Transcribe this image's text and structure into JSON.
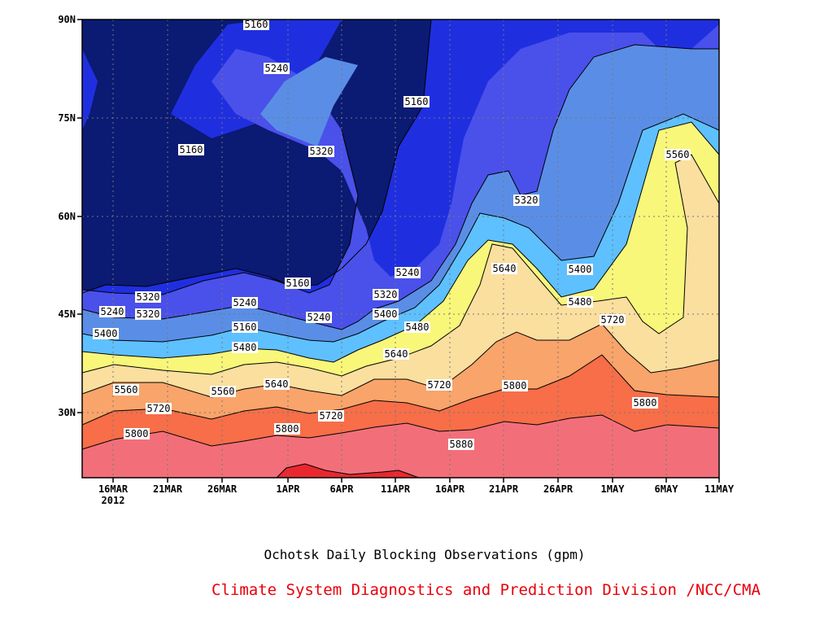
{
  "chart_data": {
    "type": "contour",
    "title": "Ochotsk Daily Blocking Observations (gpm)",
    "credit": "Climate System Diagnostics and Prediction Division /NCC/CMA",
    "colors": {
      "credit": "#e8000b",
      "levels": [
        "#0b1a73",
        "#1f2fe0",
        "#4a50ea",
        "#5a8ee6",
        "#5ec0ff",
        "#f8f77a",
        "#fbdf9f",
        "#f9a46a",
        "#f76e48",
        "#f26f7a",
        "#e8282e"
      ]
    },
    "x_ticks": [
      "16MAR",
      "21MAR",
      "26MAR",
      "1APR",
      "6APR",
      "11APR",
      "16APR",
      "21APR",
      "26APR",
      "1MAY",
      "6MAY",
      "11MAY"
    ],
    "x_year_label": "2012",
    "y_ticks": [
      "30N",
      "45N",
      "60N",
      "75N",
      "90N"
    ],
    "ylim": [
      20,
      90
    ],
    "grid": true,
    "contour_levels": [
      5160,
      5240,
      5320,
      5400,
      5480,
      5560,
      5640,
      5720,
      5800,
      5880
    ],
    "contour_labels": [
      {
        "text": "5160"
      },
      {
        "text": "5240"
      },
      {
        "text": "5160"
      },
      {
        "text": "5320"
      },
      {
        "text": "5160"
      },
      {
        "text": "5320"
      },
      {
        "text": "5160"
      },
      {
        "text": "5240"
      },
      {
        "text": "5320"
      },
      {
        "text": "5240"
      },
      {
        "text": "5560"
      },
      {
        "text": "5400"
      },
      {
        "text": "5160"
      },
      {
        "text": "5320"
      },
      {
        "text": "5240"
      },
      {
        "text": "5320"
      },
      {
        "text": "5400"
      },
      {
        "text": "5400"
      },
      {
        "text": "5240"
      },
      {
        "text": "5400"
      },
      {
        "text": "5480"
      },
      {
        "text": "5480"
      },
      {
        "text": "5480"
      },
      {
        "text": "5560"
      },
      {
        "text": "5640"
      },
      {
        "text": "5640"
      },
      {
        "text": "5560"
      },
      {
        "text": "5640"
      },
      {
        "text": "5560"
      },
      {
        "text": "5720"
      },
      {
        "text": "5720"
      },
      {
        "text": "5720"
      },
      {
        "text": "5720"
      },
      {
        "text": "5800"
      },
      {
        "text": "5800"
      },
      {
        "text": "5800"
      },
      {
        "text": "5800"
      },
      {
        "text": "5880"
      }
    ]
  }
}
